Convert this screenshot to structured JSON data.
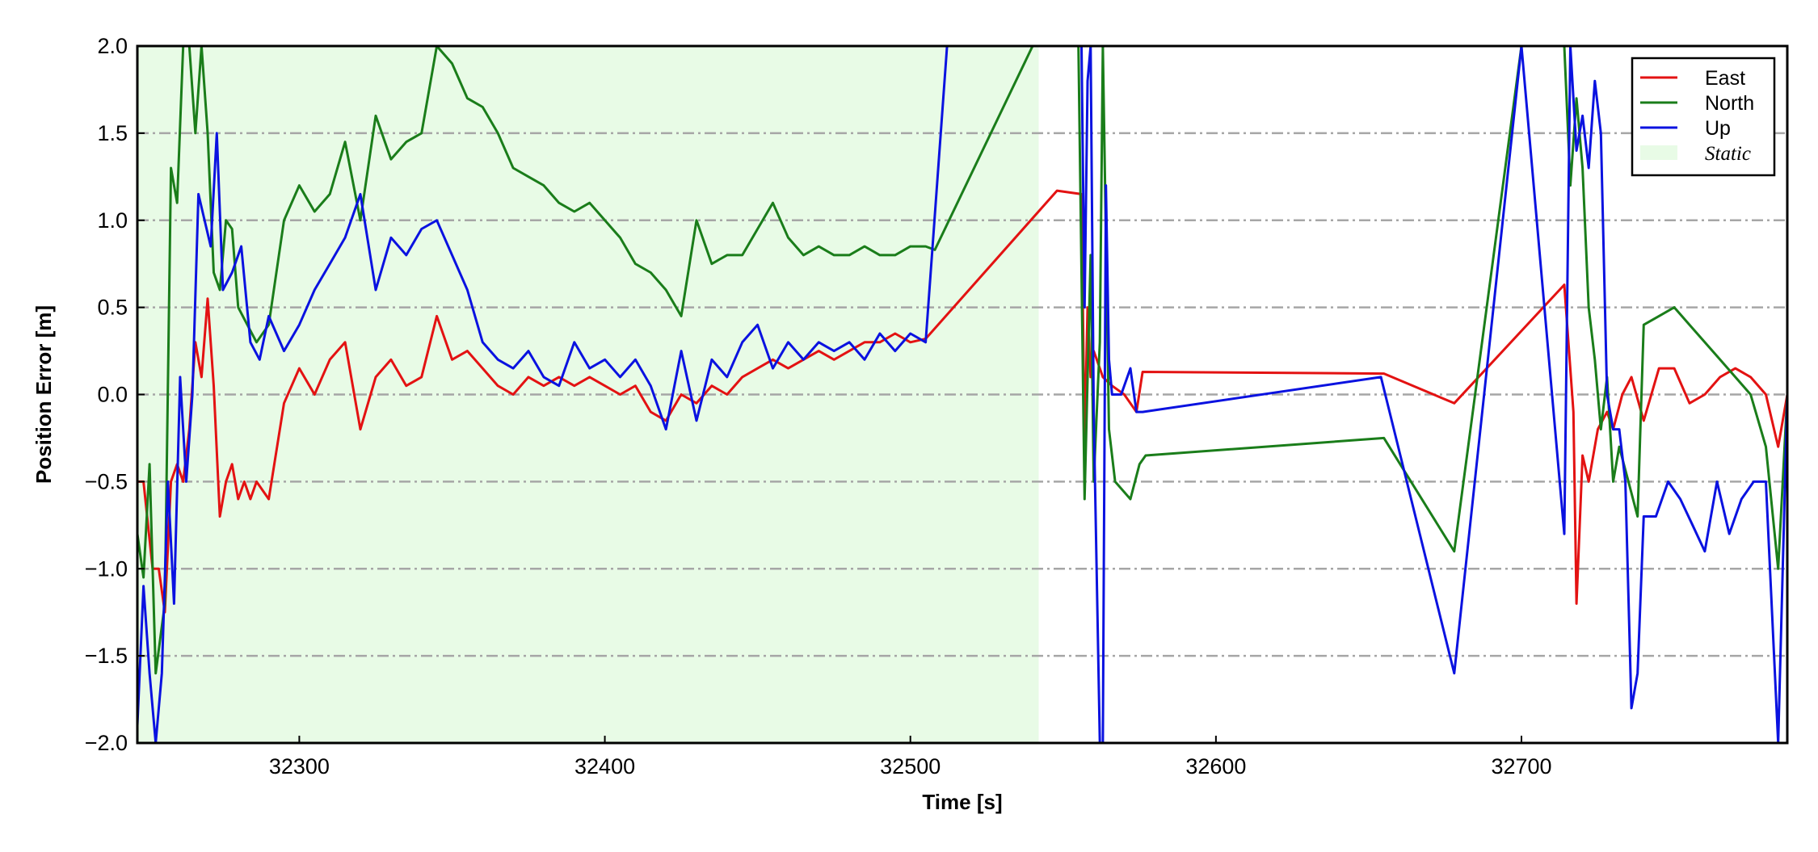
{
  "chart_data": {
    "type": "line",
    "title": "",
    "xlabel": "Time [s]",
    "ylabel": "Position Error [m]",
    "xlim": [
      32247,
      32787
    ],
    "ylim": [
      -2.0,
      2.0
    ],
    "xticks": [
      32300,
      32400,
      32500,
      32600,
      32700
    ],
    "xtick_labels": [
      "32300",
      "32400",
      "32500",
      "32600",
      "32700"
    ],
    "yticks": [
      2.0,
      1.5,
      1.0,
      0.5,
      0.0,
      -0.5,
      -1.0,
      -1.5,
      -2.0
    ],
    "ytick_labels": [
      "2.0",
      "1.5",
      "1.0",
      "0.5",
      "0.0",
      "−0.5",
      "−1.0",
      "−1.5",
      "−2.0"
    ],
    "grid": "horizontal dash-dot gray",
    "legend_position": "top-right",
    "static_region": {
      "label": "Static",
      "x_start": 32247,
      "x_end": 32542,
      "color": "#e8fbe6"
    },
    "series": [
      {
        "name": "East",
        "color": "#e31212",
        "x": [
          32247,
          32249,
          32252,
          32254,
          32256,
          32258,
          32260,
          32262,
          32264,
          32266,
          32268,
          32270,
          32272,
          32274,
          32276,
          32278,
          32280,
          32282,
          32284,
          32286,
          32290,
          32295,
          32300,
          32305,
          32310,
          32315,
          32320,
          32325,
          32330,
          32335,
          32340,
          32345,
          32350,
          32355,
          32360,
          32365,
          32370,
          32375,
          32380,
          32385,
          32390,
          32395,
          32400,
          32405,
          32410,
          32415,
          32420,
          32425,
          32430,
          32435,
          32440,
          32445,
          32450,
          32455,
          32460,
          32465,
          32470,
          32475,
          32480,
          32485,
          32490,
          32495,
          32500,
          32505,
          32548,
          32556,
          32557,
          32558,
          32559,
          32560,
          32561,
          32563,
          32566,
          32570,
          32574,
          32576,
          32655,
          32678,
          32714,
          32717,
          32718,
          32720,
          32722,
          32725,
          32728,
          32730,
          32733,
          32736,
          32740,
          32745,
          32750,
          32755,
          32760,
          32765,
          32770,
          32775,
          32780,
          32784,
          32787
        ],
        "y": [
          -0.5,
          -0.5,
          -1.0,
          -1.0,
          -1.25,
          -0.5,
          -0.4,
          -0.5,
          -0.2,
          0.3,
          0.1,
          0.55,
          0.05,
          -0.7,
          -0.5,
          -0.4,
          -0.6,
          -0.5,
          -0.6,
          -0.5,
          -0.6,
          -0.05,
          0.15,
          0.0,
          0.2,
          0.3,
          -0.2,
          0.1,
          0.2,
          0.05,
          0.1,
          0.45,
          0.2,
          0.25,
          0.15,
          0.05,
          0.0,
          0.1,
          0.05,
          0.1,
          0.05,
          0.1,
          0.05,
          0.0,
          0.05,
          -0.1,
          -0.15,
          0.0,
          -0.05,
          0.05,
          0.0,
          0.1,
          0.15,
          0.2,
          0.15,
          0.2,
          0.25,
          0.2,
          0.25,
          0.3,
          0.3,
          0.35,
          0.3,
          0.32,
          1.17,
          1.15,
          -0.3,
          0.5,
          0.1,
          0.25,
          0.2,
          0.1,
          0.05,
          0.0,
          -0.1,
          0.13,
          0.12,
          -0.05,
          0.63,
          -0.1,
          -1.2,
          -0.35,
          -0.5,
          -0.2,
          -0.1,
          -0.2,
          0.0,
          0.1,
          -0.15,
          0.15,
          0.15,
          -0.05,
          0.0,
          0.1,
          0.15,
          0.1,
          0.0,
          -0.3,
          0.0
        ]
      },
      {
        "name": "North",
        "color": "#1a7d1a",
        "x": [
          32247,
          32249,
          32251,
          32253,
          32256,
          32258,
          32260,
          32262,
          32264,
          32266,
          32268,
          32270,
          32272,
          32274,
          32276,
          32278,
          32280,
          32283,
          32286,
          32290,
          32295,
          32300,
          32305,
          32310,
          32315,
          32320,
          32325,
          32330,
          32335,
          32340,
          32345,
          32350,
          32355,
          32360,
          32365,
          32370,
          32375,
          32380,
          32385,
          32390,
          32395,
          32400,
          32405,
          32410,
          32415,
          32420,
          32425,
          32430,
          32435,
          32440,
          32445,
          32450,
          32455,
          32460,
          32465,
          32470,
          32475,
          32480,
          32485,
          32490,
          32495,
          32500,
          32505,
          32508,
          32540,
          32555,
          32557,
          32559,
          32560,
          32562,
          32563,
          32565,
          32567,
          32572,
          32575,
          32577,
          32655,
          32678,
          32700,
          32714,
          32716,
          32718,
          32720,
          32722,
          32724,
          32726,
          32728,
          32730,
          32732,
          32735,
          32738,
          32740,
          32745,
          32750,
          32755,
          32760,
          32765,
          32770,
          32775,
          32780,
          32784,
          32787
        ],
        "y": [
          -0.8,
          -1.05,
          -0.4,
          -1.6,
          -1.2,
          1.3,
          1.1,
          2.0,
          2.0,
          1.5,
          2.0,
          1.5,
          0.7,
          0.6,
          1.0,
          0.95,
          0.5,
          0.4,
          0.3,
          0.4,
          1.0,
          1.2,
          1.05,
          1.15,
          1.45,
          1.0,
          1.6,
          1.35,
          1.45,
          1.5,
          2.0,
          1.9,
          1.7,
          1.65,
          1.5,
          1.3,
          1.25,
          1.2,
          1.1,
          1.05,
          1.1,
          1.0,
          0.9,
          0.75,
          0.7,
          0.6,
          0.45,
          1.0,
          0.75,
          0.8,
          0.8,
          0.95,
          1.1,
          0.9,
          0.8,
          0.85,
          0.8,
          0.8,
          0.85,
          0.8,
          0.8,
          0.85,
          0.85,
          0.83,
          2.0,
          2.0,
          -0.6,
          0.8,
          -0.5,
          0.3,
          2.0,
          -0.2,
          -0.5,
          -0.6,
          -0.4,
          -0.35,
          -0.25,
          -0.9,
          2.0,
          2.0,
          1.2,
          1.7,
          1.3,
          0.5,
          0.2,
          -0.2,
          0.1,
          -0.5,
          -0.3,
          -0.5,
          -0.7,
          0.4,
          0.45,
          0.5,
          0.4,
          0.3,
          0.2,
          0.1,
          0.0,
          -0.3,
          -1.0,
          0.0
        ]
      },
      {
        "name": "Up",
        "color": "#0a12e0",
        "x": [
          32247,
          32249,
          32251,
          32253,
          32255,
          32257,
          32259,
          32261,
          32263,
          32265,
          32267,
          32269,
          32271,
          32273,
          32275,
          32278,
          32281,
          32284,
          32287,
          32290,
          32295,
          32300,
          32305,
          32310,
          32315,
          32320,
          32325,
          32330,
          32335,
          32340,
          32345,
          32350,
          32355,
          32360,
          32365,
          32370,
          32375,
          32380,
          32385,
          32390,
          32395,
          32400,
          32405,
          32410,
          32415,
          32420,
          32425,
          32430,
          32435,
          32440,
          32445,
          32450,
          32455,
          32460,
          32465,
          32470,
          32475,
          32480,
          32485,
          32490,
          32495,
          32500,
          32505,
          32512,
          32522,
          32556,
          32557,
          32558,
          32559,
          32560,
          32562,
          32563,
          32564,
          32565,
          32566,
          32567,
          32569,
          32572,
          32574,
          32576,
          32654,
          32678,
          32700,
          32714,
          32716,
          32718,
          32720,
          32722,
          32724,
          32726,
          32728,
          32730,
          32732,
          32734,
          32736,
          32738,
          32740,
          32744,
          32748,
          32752,
          32756,
          32760,
          32764,
          32768,
          32772,
          32776,
          32780,
          32784,
          32787
        ],
        "y": [
          -1.9,
          -1.1,
          -1.6,
          -2.0,
          -1.6,
          -0.5,
          -1.2,
          0.1,
          -0.5,
          0.0,
          1.15,
          1.0,
          0.85,
          1.5,
          0.6,
          0.7,
          0.85,
          0.3,
          0.2,
          0.45,
          0.25,
          0.4,
          0.6,
          0.75,
          0.9,
          1.15,
          0.6,
          0.9,
          0.8,
          0.95,
          1.0,
          0.8,
          0.6,
          0.3,
          0.2,
          0.15,
          0.25,
          0.1,
          0.05,
          0.3,
          0.15,
          0.2,
          0.1,
          0.2,
          0.05,
          -0.2,
          0.25,
          -0.15,
          0.2,
          0.1,
          0.3,
          0.4,
          0.15,
          0.3,
          0.2,
          0.3,
          0.25,
          0.3,
          0.2,
          0.35,
          0.25,
          0.35,
          0.3,
          2.0,
          2.0,
          2.0,
          0.5,
          1.8,
          2.0,
          -0.1,
          -2.0,
          -2.0,
          1.2,
          0.2,
          0.0,
          0.0,
          0.0,
          0.15,
          -0.1,
          -0.1,
          0.1,
          -1.6,
          2.0,
          -0.8,
          2.0,
          1.4,
          1.6,
          1.3,
          1.8,
          1.5,
          0.0,
          -0.2,
          -0.2,
          -0.5,
          -1.8,
          -1.6,
          -0.7,
          -0.7,
          -0.5,
          -0.6,
          -0.75,
          -0.9,
          -0.5,
          -0.8,
          -0.6,
          -0.5,
          -0.5,
          -2.0,
          0.0
        ]
      }
    ]
  }
}
